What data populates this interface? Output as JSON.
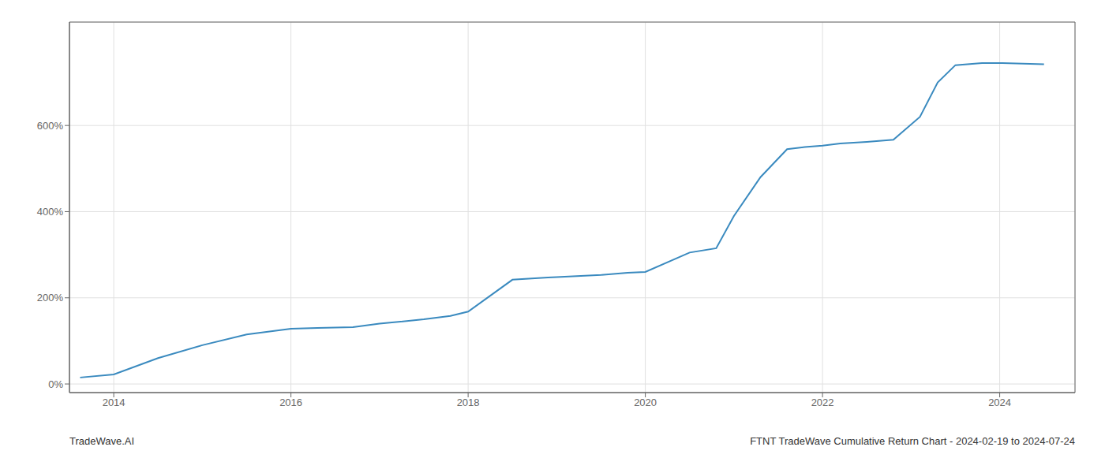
{
  "chart_data": {
    "type": "line",
    "title": "FTNT TradeWave Cumulative Return Chart - 2024-02-19 to 2024-07-24",
    "annotations": [
      "TradeWave.AI"
    ],
    "x": [
      2013.62,
      2014.0,
      2014.5,
      2015.0,
      2015.5,
      2016.0,
      2016.3,
      2016.7,
      2017.0,
      2017.5,
      2017.8,
      2018.0,
      2018.5,
      2018.9,
      2019.0,
      2019.5,
      2019.8,
      2020.0,
      2020.5,
      2020.8,
      2021.0,
      2021.3,
      2021.6,
      2021.8,
      2022.0,
      2022.2,
      2022.5,
      2022.8,
      2023.1,
      2023.3,
      2023.5,
      2023.8,
      2024.0,
      2024.5
    ],
    "values": [
      15,
      22,
      60,
      90,
      115,
      128,
      130,
      132,
      140,
      150,
      158,
      168,
      242,
      247,
      248,
      253,
      258,
      260,
      305,
      315,
      390,
      480,
      545,
      550,
      553,
      558,
      562,
      567,
      620,
      700,
      740,
      745,
      745,
      742
    ],
    "color": "#3a8abf",
    "xlim": [
      2013.5,
      2024.85
    ],
    "ylim": [
      -20,
      840
    ],
    "xticks": [
      2014,
      2016,
      2018,
      2020,
      2022,
      2024
    ],
    "yticks": [
      {
        "value": 0,
        "label": "0%"
      },
      {
        "value": 200,
        "label": "200%"
      },
      {
        "value": 400,
        "label": "400%"
      },
      {
        "value": 600,
        "label": "600%"
      }
    ],
    "grid": true
  }
}
